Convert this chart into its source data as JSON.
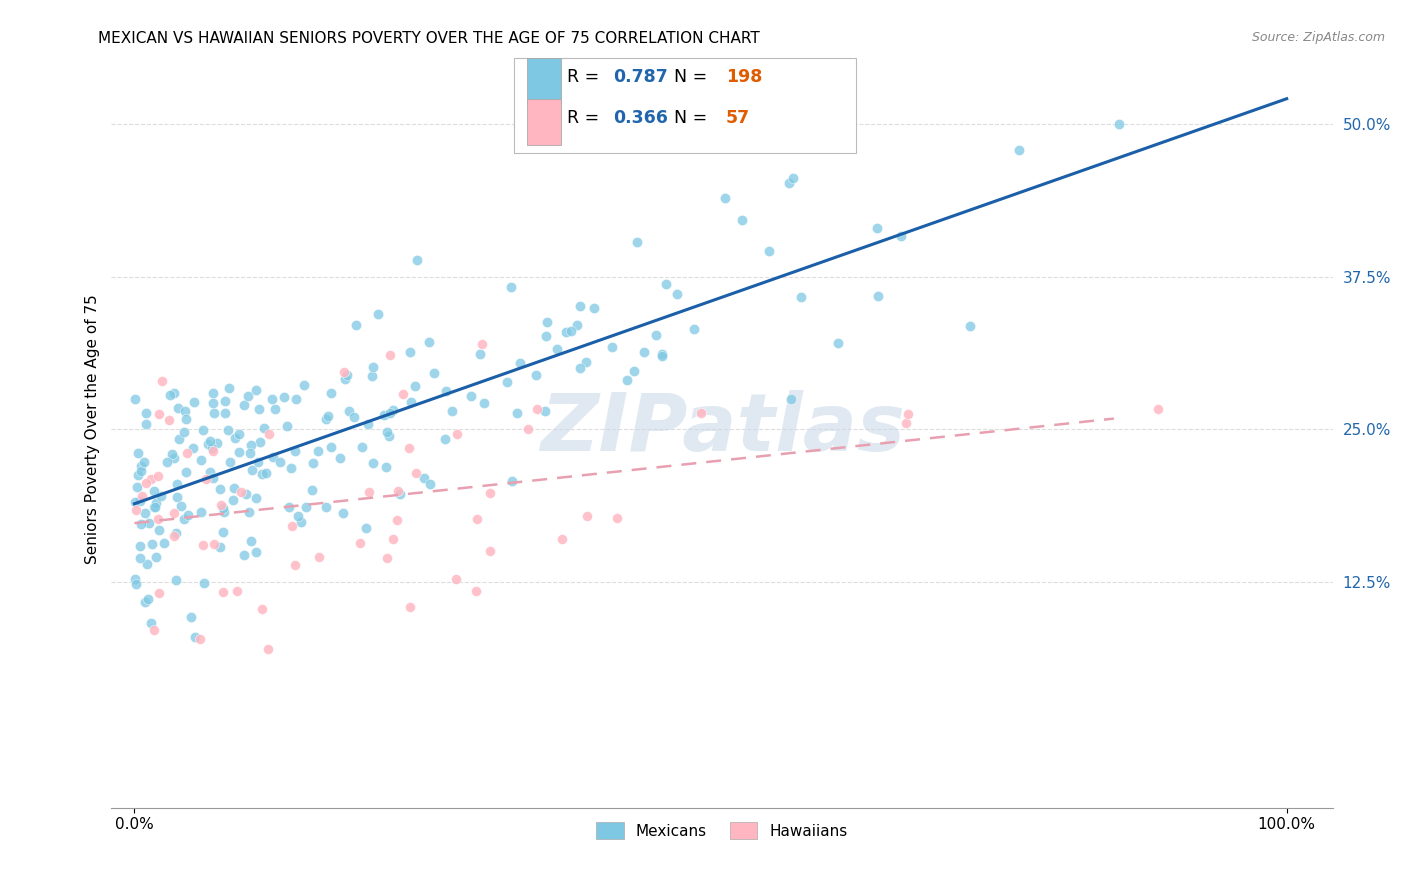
{
  "title": "MEXICAN VS HAWAIIAN SENIORS POVERTY OVER THE AGE OF 75 CORRELATION CHART",
  "source": "Source: ZipAtlas.com",
  "ylabel_label": "Seniors Poverty Over the Age of 75",
  "legend_r_mexican": "0.787",
  "legend_n_mexican": "198",
  "legend_r_hawaiian": "0.366",
  "legend_n_hawaiian": "57",
  "mexican_color": "#7ec8e3",
  "hawaiian_color": "#ffb6c1",
  "trendline_mexican_color": "#1a5fa8",
  "trendline_hawaiian_color": "#e8a0b0",
  "watermark_text": "ZIPatlas",
  "background_color": "#ffffff",
  "grid_color": "#dddddd",
  "ytick_color": "#2166ac",
  "legend_r_color": "#2166ac",
  "legend_n_color": "#e05c00",
  "title_fontsize": 11,
  "source_fontsize": 9
}
